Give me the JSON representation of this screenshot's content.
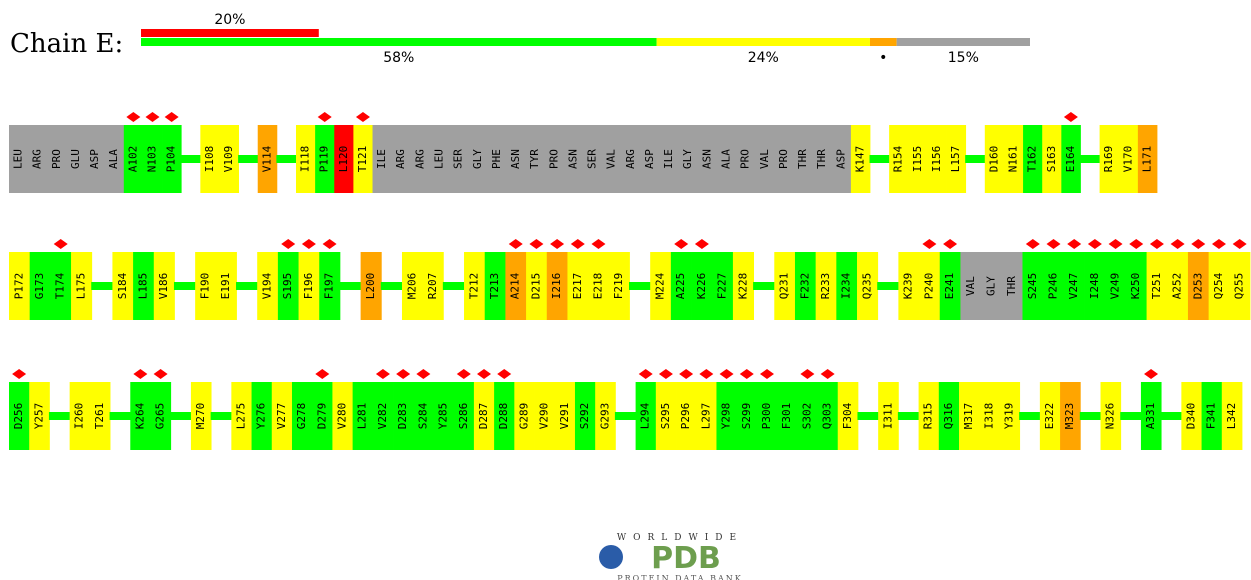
{
  "chain": "Chain E:",
  "palette": {
    "G": "#00ff00",
    "Y": "#ffff00",
    "O": "#ffa500",
    "R": "#ff0000",
    "N": "#a0a0a0"
  },
  "quality_bar": {
    "outlier": {
      "value": 20,
      "label": "20%",
      "color": "#ff0000"
    },
    "segments": [
      {
        "value": 58,
        "label": "58%",
        "color": "#00ff00"
      },
      {
        "value": 24,
        "label": "24%",
        "color": "#ffff00"
      },
      {
        "value": 3,
        "label": "•",
        "color": "#ffa500"
      },
      {
        "value": 15,
        "label": "15%",
        "color": "#a0a0a0"
      }
    ]
  },
  "rows": [
    [
      [
        [
          "LEU",
          "N",
          0
        ],
        [
          "ARG",
          "N",
          0
        ],
        [
          "PRO",
          "N",
          0
        ],
        [
          "GLU",
          "N",
          0
        ],
        [
          "ASP",
          "N",
          0
        ],
        [
          "ALA",
          "N",
          0
        ],
        [
          "A102",
          "G",
          1
        ],
        [
          "N103",
          "G",
          1
        ],
        [
          "P104",
          "G",
          1
        ]
      ],
      [
        [
          "I108",
          "Y",
          0
        ],
        [
          "V109",
          "Y",
          0
        ]
      ],
      [
        [
          "V114",
          "O",
          0
        ]
      ],
      [
        [
          "I118",
          "Y",
          0
        ],
        [
          "P119",
          "G",
          1
        ],
        [
          "L120",
          "R",
          0
        ],
        [
          "T121",
          "Y",
          1
        ],
        [
          "ILE",
          "N",
          0
        ],
        [
          "ARG",
          "N",
          0
        ],
        [
          "ARG",
          "N",
          0
        ],
        [
          "LEU",
          "N",
          0
        ],
        [
          "SER",
          "N",
          0
        ],
        [
          "GLY",
          "N",
          0
        ],
        [
          "PHE",
          "N",
          0
        ],
        [
          "ASN",
          "N",
          0
        ],
        [
          "TYR",
          "N",
          0
        ],
        [
          "PRO",
          "N",
          0
        ],
        [
          "ASN",
          "N",
          0
        ],
        [
          "SER",
          "N",
          0
        ],
        [
          "VAL",
          "N",
          0
        ],
        [
          "ARG",
          "N",
          0
        ],
        [
          "ASP",
          "N",
          0
        ],
        [
          "ILE",
          "N",
          0
        ],
        [
          "GLY",
          "N",
          0
        ],
        [
          "ASN",
          "N",
          0
        ],
        [
          "ALA",
          "N",
          0
        ],
        [
          "PRO",
          "N",
          0
        ],
        [
          "VAL",
          "N",
          0
        ],
        [
          "PRO",
          "N",
          0
        ],
        [
          "THR",
          "N",
          0
        ],
        [
          "THR",
          "N",
          0
        ],
        [
          "ASP",
          "N",
          0
        ],
        [
          "K147",
          "Y",
          0
        ]
      ],
      [
        [
          "R154",
          "Y",
          0
        ],
        [
          "I155",
          "Y",
          0
        ],
        [
          "I156",
          "Y",
          0
        ],
        [
          "L157",
          "Y",
          0
        ]
      ],
      [
        [
          "D160",
          "Y",
          0
        ],
        [
          "N161",
          "Y",
          0
        ],
        [
          "T162",
          "G",
          0
        ],
        [
          "S163",
          "Y",
          0
        ],
        [
          "E164",
          "G",
          1
        ]
      ],
      [
        [
          "R169",
          "Y",
          0
        ],
        [
          "V170",
          "Y",
          0
        ],
        [
          "L171",
          "O",
          0
        ]
      ]
    ],
    [
      [
        [
          "P172",
          "Y",
          0
        ],
        [
          "G173",
          "G",
          0
        ],
        [
          "T174",
          "G",
          1
        ],
        [
          "L175",
          "Y",
          0
        ]
      ],
      [
        [
          "S184",
          "Y",
          0
        ],
        [
          "L185",
          "G",
          0
        ],
        [
          "V186",
          "Y",
          0
        ]
      ],
      [
        [
          "F190",
          "Y",
          0
        ],
        [
          "E191",
          "Y",
          0
        ]
      ],
      [
        [
          "V194",
          "Y",
          0
        ],
        [
          "S195",
          "G",
          1
        ],
        [
          "F196",
          "Y",
          1
        ],
        [
          "F197",
          "G",
          1
        ]
      ],
      [
        [
          "L200",
          "O",
          0
        ]
      ],
      [
        [
          "M206",
          "Y",
          0
        ],
        [
          "R207",
          "Y",
          0
        ]
      ],
      [
        [
          "T212",
          "Y",
          0
        ],
        [
          "T213",
          "G",
          0
        ],
        [
          "A214",
          "O",
          1
        ],
        [
          "D215",
          "Y",
          1
        ],
        [
          "I216",
          "O",
          1
        ],
        [
          "E217",
          "Y",
          1
        ],
        [
          "E218",
          "Y",
          1
        ],
        [
          "F219",
          "Y",
          0
        ]
      ],
      [
        [
          "M224",
          "Y",
          0
        ],
        [
          "A225",
          "G",
          1
        ],
        [
          "K226",
          "G",
          1
        ],
        [
          "F227",
          "G",
          0
        ],
        [
          "K228",
          "Y",
          0
        ]
      ],
      [
        [
          "Q231",
          "Y",
          0
        ],
        [
          "F232",
          "G",
          0
        ],
        [
          "R233",
          "Y",
          0
        ],
        [
          "I234",
          "G",
          0
        ],
        [
          "Q235",
          "Y",
          0
        ]
      ],
      [
        [
          "K239",
          "Y",
          0
        ],
        [
          "P240",
          "Y",
          1
        ],
        [
          "E241",
          "G",
          1
        ],
        [
          "VAL",
          "N",
          0
        ],
        [
          "GLY",
          "N",
          0
        ],
        [
          "THR",
          "N",
          0
        ],
        [
          "S245",
          "G",
          1
        ],
        [
          "P246",
          "G",
          1
        ],
        [
          "V247",
          "G",
          1
        ],
        [
          "I248",
          "G",
          1
        ],
        [
          "V249",
          "G",
          1
        ],
        [
          "K250",
          "G",
          1
        ],
        [
          "T251",
          "Y",
          1
        ],
        [
          "A252",
          "Y",
          1
        ],
        [
          "D253",
          "O",
          1
        ],
        [
          "Q254",
          "Y",
          1
        ],
        [
          "Q255",
          "Y",
          1
        ]
      ]
    ],
    [
      [
        [
          "D256",
          "G",
          1
        ],
        [
          "Y257",
          "Y",
          0
        ]
      ],
      [
        [
          "I260",
          "Y",
          0
        ],
        [
          "T261",
          "Y",
          0
        ]
      ],
      [
        [
          "K264",
          "G",
          1
        ],
        [
          "G265",
          "G",
          1
        ]
      ],
      [
        [
          "M270",
          "Y",
          0
        ]
      ],
      [
        [
          "L275",
          "Y",
          0
        ],
        [
          "Y276",
          "G",
          0
        ],
        [
          "V277",
          "Y",
          0
        ],
        [
          "G278",
          "G",
          0
        ],
        [
          "D279",
          "G",
          1
        ],
        [
          "V280",
          "Y",
          0
        ],
        [
          "L281",
          "G",
          0
        ],
        [
          "V282",
          "G",
          1
        ],
        [
          "D283",
          "G",
          1
        ],
        [
          "S284",
          "G",
          1
        ],
        [
          "Y285",
          "G",
          0
        ],
        [
          "S286",
          "G",
          1
        ],
        [
          "D287",
          "Y",
          1
        ],
        [
          "D288",
          "G",
          1
        ],
        [
          "G289",
          "Y",
          0
        ],
        [
          "V290",
          "Y",
          0
        ],
        [
          "V291",
          "Y",
          0
        ],
        [
          "S292",
          "G",
          0
        ],
        [
          "G293",
          "Y",
          0
        ]
      ],
      [
        [
          "L294",
          "G",
          1
        ],
        [
          "S295",
          "Y",
          1
        ],
        [
          "P296",
          "Y",
          1
        ],
        [
          "L297",
          "Y",
          1
        ],
        [
          "Y298",
          "G",
          1
        ],
        [
          "S299",
          "G",
          1
        ],
        [
          "P300",
          "G",
          1
        ],
        [
          "F301",
          "G",
          0
        ],
        [
          "S302",
          "G",
          1
        ],
        [
          "Q303",
          "G",
          1
        ],
        [
          "F304",
          "Y",
          0
        ]
      ],
      [
        [
          "I311",
          "Y",
          0
        ]
      ],
      [
        [
          "R315",
          "Y",
          0
        ],
        [
          "Q316",
          "G",
          0
        ],
        [
          "M317",
          "Y",
          0
        ],
        [
          "I318",
          "Y",
          0
        ],
        [
          "Y319",
          "Y",
          0
        ]
      ],
      [
        [
          "E322",
          "Y",
          0
        ],
        [
          "M323",
          "O",
          0
        ]
      ],
      [
        [
          "N326",
          "Y",
          0
        ]
      ],
      [
        [
          "A331",
          "G",
          1
        ]
      ],
      [
        [
          "D340",
          "Y",
          0
        ],
        [
          "F341",
          "G",
          0
        ],
        [
          "L342",
          "Y",
          0
        ]
      ]
    ]
  ],
  "logo": {
    "top": "WORLDWIDE",
    "main": "PDB",
    "bottom": "PROTEIN DATA BANK"
  }
}
